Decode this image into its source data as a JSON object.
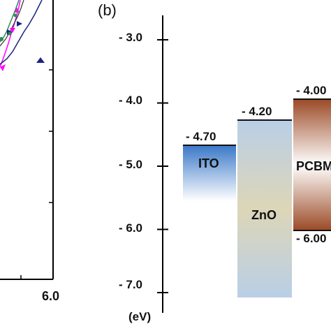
{
  "panel_a": {
    "x_tick_label": "6.0",
    "colors": {
      "axis": "#000000",
      "magenta": "#ff00ff",
      "navy": "#1a237e",
      "green": "#2e8b57"
    }
  },
  "panel_b": {
    "panel_label": "(b)",
    "axis_unit_label": "(eV)",
    "y_ticks": [
      {
        "value": -3.0,
        "label": "- 3.0"
      },
      {
        "value": -4.0,
        "label": "- 4.0"
      },
      {
        "value": -5.0,
        "label": "- 5.0"
      },
      {
        "value": -6.0,
        "label": "- 6.0"
      },
      {
        "value": -7.0,
        "label": "- 7.0"
      }
    ],
    "materials": [
      {
        "name": "ITO",
        "level_labels": [
          "- 4.70"
        ],
        "top_ev": -4.7,
        "bottom_ev": null,
        "colors": [
          "#3a78c8",
          "#ffffff"
        ]
      },
      {
        "name": "ZnO",
        "level_labels": [
          "- 4.20"
        ],
        "top_ev": -4.2,
        "bottom_ev": null,
        "colors": [
          "#b9cfe6",
          "#ddd6b8",
          "#b9cfe6"
        ]
      },
      {
        "name": "PCBM",
        "level_labels": [
          "- 4.00",
          "- 6.00"
        ],
        "top_ev": -4.0,
        "bottom_ev": -6.0,
        "colors": [
          "#9b4a26",
          "#ffffff",
          "#9b4a26"
        ]
      }
    ]
  }
}
